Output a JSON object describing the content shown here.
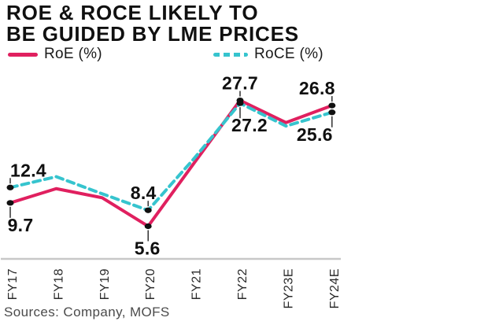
{
  "title_lines": [
    "ROE & ROCE LIKELY TO",
    "BE GUIDED BY LME PRICES"
  ],
  "legend": [
    {
      "label": "RoE (%)",
      "color": "#e0205f",
      "style": "solid"
    },
    {
      "label": "RoCE (%)",
      "color": "#36c4ce",
      "style": "dashed"
    }
  ],
  "source_note": "Sources: Company, MOFS",
  "colors": {
    "roe_line": "#e0205f",
    "roce_line": "#36c4ce",
    "marker": "#111111",
    "axis_line": "#c8c8c8",
    "label_text": "#101010",
    "tick_text": "#2a2a2a",
    "source_text": "#4b4b4b"
  },
  "chart_data": {
    "type": "line",
    "categories": [
      "FY17",
      "FY18",
      "FY19",
      "FY20",
      "FY21",
      "FY22",
      "FY23E",
      "FY24E"
    ],
    "series": [
      {
        "name": "RoE (%)",
        "color": "#e0205f",
        "line_style": "solid",
        "values": [
          9.7,
          12.2,
          10.6,
          5.6,
          16.7,
          27.7,
          23.8,
          26.8
        ]
      },
      {
        "name": "RoCE (%)",
        "color": "#36c4ce",
        "line_style": "dashed",
        "values": [
          12.4,
          14.3,
          11.3,
          8.4,
          17.5,
          27.2,
          23.2,
          25.6
        ]
      }
    ],
    "point_labels": [
      {
        "series": "RoCE (%)",
        "category": "FY17",
        "text": "12.4",
        "placement": "above"
      },
      {
        "series": "RoE (%)",
        "category": "FY17",
        "text": "9.7",
        "placement": "below"
      },
      {
        "series": "RoCE (%)",
        "category": "FY20",
        "text": "8.4",
        "placement": "above"
      },
      {
        "series": "RoE (%)",
        "category": "FY20",
        "text": "5.6",
        "placement": "below"
      },
      {
        "series": "RoE (%)",
        "category": "FY22",
        "text": "27.7",
        "placement": "above"
      },
      {
        "series": "RoCE (%)",
        "category": "FY22",
        "text": "27.2",
        "placement": "below"
      },
      {
        "series": "RoE (%)",
        "category": "FY24E",
        "text": "26.8",
        "placement": "above"
      },
      {
        "series": "RoCE (%)",
        "category": "FY24E",
        "text": "25.6",
        "placement": "below"
      }
    ],
    "title": "ROE & ROCE LIKELY TO BE GUIDED BY LME PRICES",
    "xlabel": "",
    "ylabel": "",
    "ylim": [
      0,
      30
    ],
    "grid": false,
    "legend_position": "top",
    "y_axis_visible": false
  }
}
